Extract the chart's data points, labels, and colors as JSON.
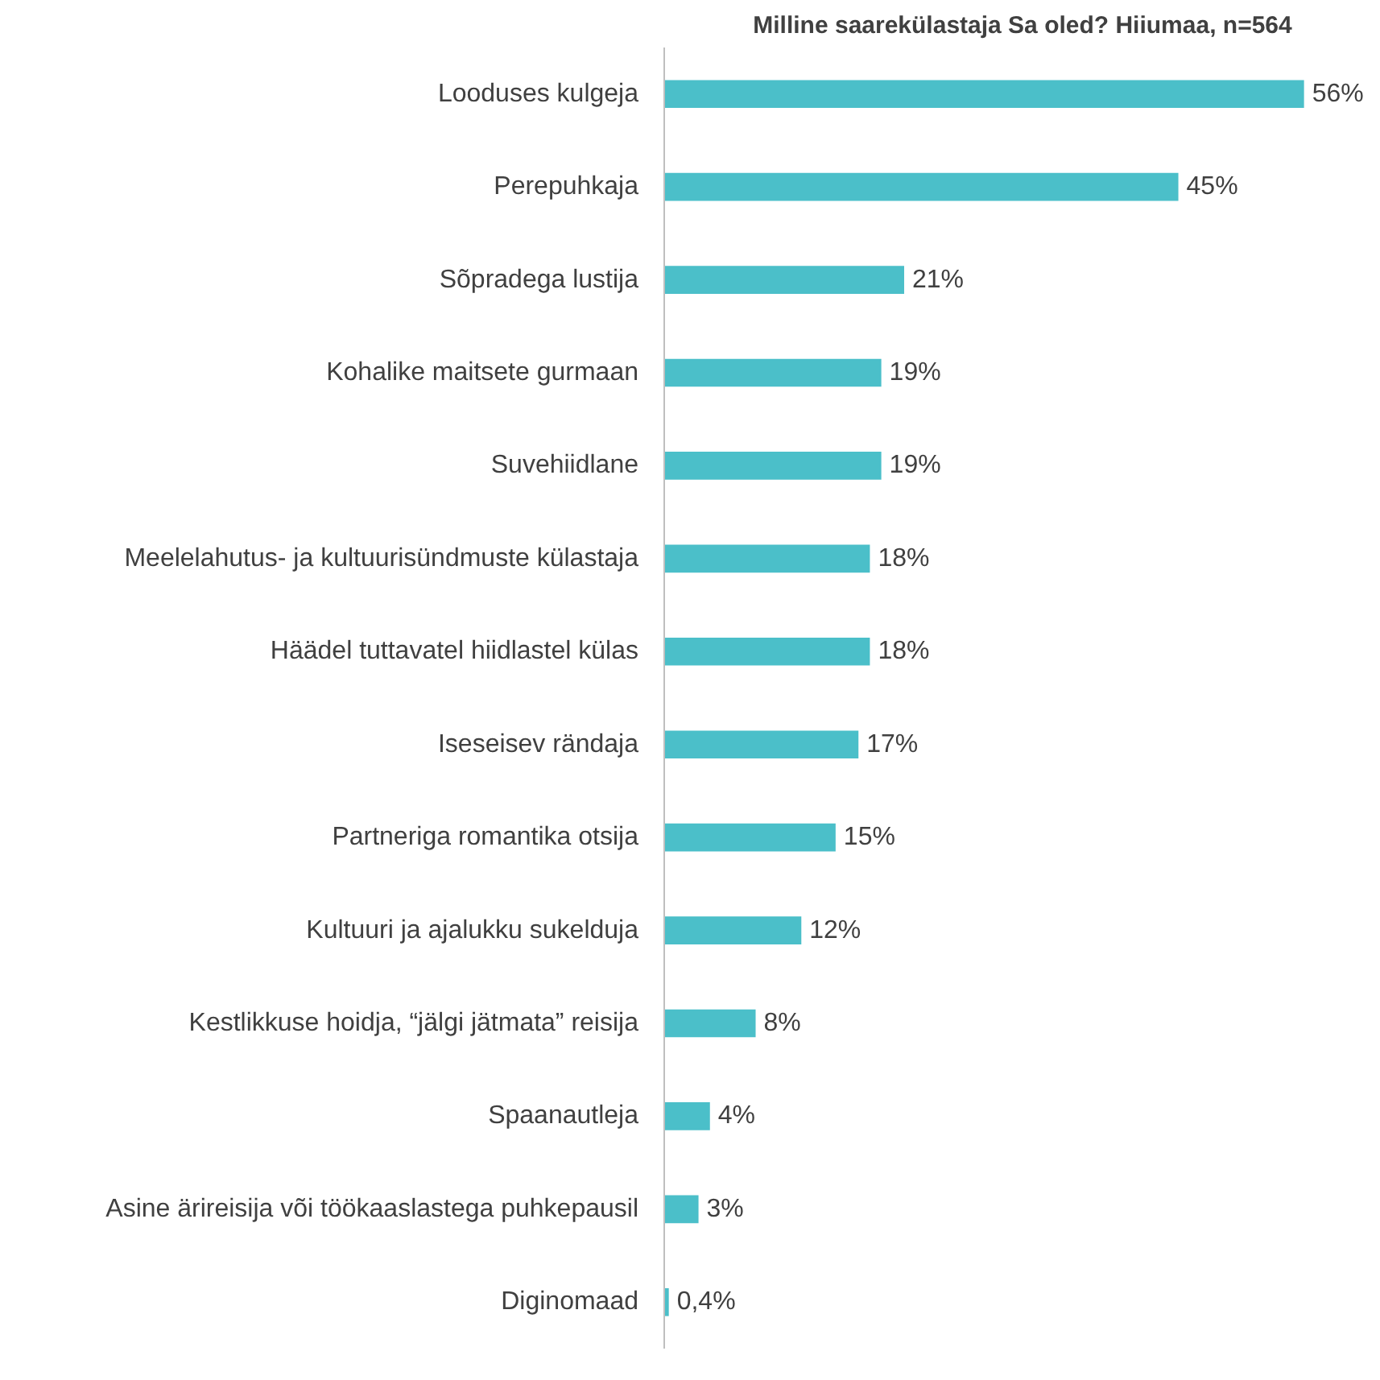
{
  "chart_data": {
    "type": "bar",
    "orientation": "horizontal",
    "title": "Milline saarekülastaja Sa oled? Hiiumaa, n=564",
    "categories": [
      "Looduses kulgeja",
      "Perepuhkaja",
      "Sõpradega lustija",
      "Kohalike maitsete gurmaan",
      "Suvehiidlane",
      "Meelelahutus- ja kultuurisündmuste külastaja",
      "Häädel tuttavatel hiidlastel külas",
      "Iseseisev rändaja",
      "Partneriga romantika otsija",
      "Kultuuri ja ajalukku sukelduja",
      "Kestlikkuse hoidja, “jälgi jätmata” reisija",
      "Spaanautleja",
      "Asine ärireisija või töökaaslastega puhkepausil",
      "Diginomaad"
    ],
    "values": [
      56,
      45,
      21,
      19,
      19,
      18,
      18,
      17,
      15,
      12,
      8,
      4,
      3,
      0.4
    ],
    "value_labels": [
      "56%",
      "45%",
      "21%",
      "19%",
      "19%",
      "18%",
      "18%",
      "17%",
      "15%",
      "12%",
      "8%",
      "4%",
      "3%",
      "0,4%"
    ],
    "color": "#4bbfc9",
    "tick_labels": "y",
    "grid": false
  }
}
